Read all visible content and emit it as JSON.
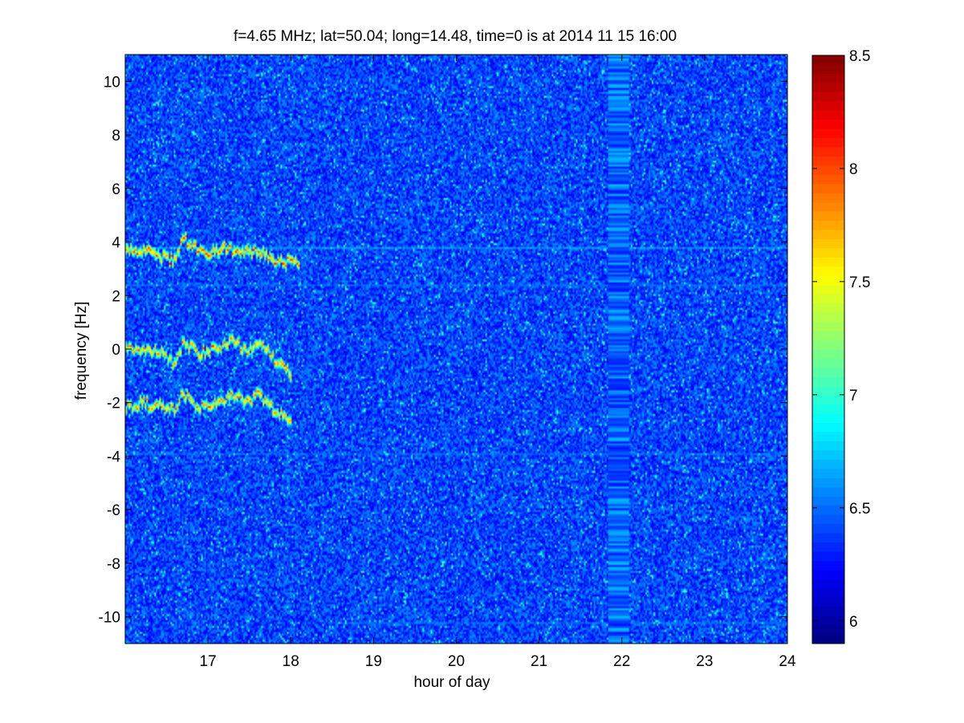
{
  "chart_data": {
    "type": "heatmap",
    "title": "f=4.65 MHz;  lat=50.04; long=14.48, time=0 is at 2014 11 15 16:00",
    "xlabel": "hour of day",
    "ylabel": "frequency [Hz]",
    "xlim": [
      16,
      24
    ],
    "ylim": [
      -11,
      11
    ],
    "x_ticks": [
      17,
      18,
      19,
      20,
      21,
      22,
      23,
      24
    ],
    "y_ticks": [
      -10,
      -8,
      -6,
      -4,
      -2,
      0,
      2,
      4,
      6,
      8,
      10
    ],
    "colorbar": {
      "colormap": "jet",
      "range": [
        5.9,
        8.5
      ],
      "ticks": [
        6,
        6.5,
        7,
        7.5,
        8,
        8.5
      ]
    },
    "background_level": 6.4,
    "features": [
      {
        "name": "Doppler trace (upper)",
        "x": [
          16.0,
          16.3,
          16.6,
          16.7,
          16.8,
          17.0,
          17.2,
          17.4,
          17.6,
          17.8,
          18.1
        ],
        "y": [
          3.8,
          3.6,
          3.3,
          4.2,
          3.9,
          3.6,
          3.8,
          3.6,
          3.7,
          3.3,
          3.2
        ],
        "value": 7.7
      },
      {
        "name": "Doppler trace (middle)",
        "x": [
          16.0,
          16.3,
          16.5,
          16.6,
          16.7,
          16.9,
          17.1,
          17.3,
          17.5,
          17.6,
          17.8,
          18.0
        ],
        "y": [
          0.1,
          -0.1,
          -0.3,
          -0.6,
          0.3,
          -0.2,
          0.0,
          0.3,
          -0.1,
          0.3,
          -0.4,
          -0.9
        ],
        "value": 7.6
      },
      {
        "name": "Doppler trace (lower)",
        "x": [
          16.0,
          16.2,
          16.4,
          16.6,
          16.7,
          16.9,
          17.1,
          17.3,
          17.5,
          17.6,
          17.8,
          18.0
        ],
        "y": [
          -2.2,
          -2.0,
          -2.1,
          -2.3,
          -1.6,
          -2.2,
          -2.1,
          -1.7,
          -2.0,
          -1.6,
          -2.3,
          -2.7
        ],
        "value": 7.6
      },
      {
        "name": "line 3.8 Hz",
        "x": [
          16.0,
          24.0
        ],
        "y": [
          3.8,
          3.8
        ],
        "value": 7.0
      },
      {
        "name": "line 2.4 Hz",
        "x": [
          16.0,
          24.0
        ],
        "y": [
          2.4,
          2.4
        ],
        "value": 6.8
      },
      {
        "name": "line -3.9 Hz",
        "x": [
          16.0,
          24.0
        ],
        "y": [
          -3.9,
          -3.9
        ],
        "value": 6.8
      },
      {
        "name": "line -10.2 Hz",
        "x": [
          18.5,
          24.0
        ],
        "y": [
          -10.2,
          -10.2
        ],
        "value": 6.8
      }
    ],
    "gap_band": {
      "x": [
        21.84,
        22.07
      ]
    }
  }
}
